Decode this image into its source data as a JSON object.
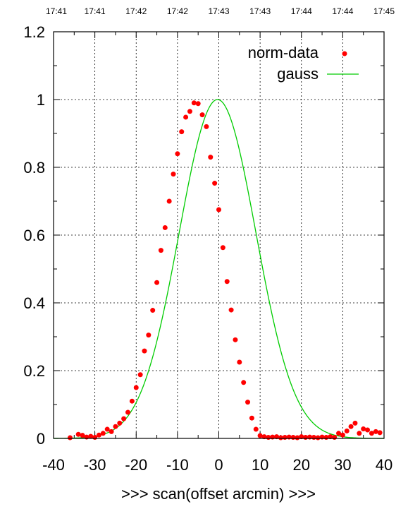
{
  "chart_data": {
    "type": "scatter",
    "title": "",
    "xlabel": ">>> scan(offset arcmin) >>>",
    "ylabel": "",
    "xlim": [
      -40,
      40
    ],
    "ylim": [
      0,
      1.2
    ],
    "x_ticks": [
      "-40",
      "-30",
      "-20",
      "-10",
      "0",
      "10",
      "20",
      "30",
      "40"
    ],
    "y_ticks": [
      "0",
      "0.2",
      "0.4",
      "0.6",
      "0.8",
      "1",
      "1.2"
    ],
    "x_tick_values": [
      -40,
      -30,
      -20,
      -10,
      0,
      10,
      20,
      30,
      40
    ],
    "y_tick_values": [
      0,
      0.2,
      0.4,
      0.6,
      0.8,
      1.0,
      1.2
    ],
    "top_time_labels": [
      "17:41",
      "17:41",
      "17:42",
      "17:42",
      "17:43",
      "17:43",
      "17:44",
      "17:44",
      "17:45"
    ],
    "grid": true,
    "legend_position": "top-right",
    "series": [
      {
        "name": "norm-data",
        "kind": "points",
        "color": "#ff0000",
        "x": [
          -36,
          -34,
          -33,
          -32,
          -31,
          -30,
          -29,
          -28,
          -27,
          -26,
          -25,
          -24,
          -23,
          -22,
          -21,
          -20,
          -19,
          -18,
          -17,
          -16,
          -15,
          -14,
          -13,
          -12,
          -11,
          -10,
          -9,
          -8,
          -7,
          -6,
          -5,
          -4,
          -3,
          -2,
          -1,
          0,
          1,
          2,
          3,
          4,
          5,
          6,
          7,
          8,
          9,
          10,
          11,
          12,
          13,
          14,
          15,
          16,
          17,
          18,
          19,
          20,
          21,
          22,
          23,
          24,
          25,
          26,
          27,
          28,
          29,
          30,
          31,
          32,
          33,
          34,
          35,
          36,
          37,
          38,
          39
        ],
        "y": [
          0.002,
          0.012,
          0.009,
          0.004,
          0.006,
          0.003,
          0.01,
          0.015,
          0.027,
          0.02,
          0.035,
          0.045,
          0.058,
          0.077,
          0.11,
          0.15,
          0.188,
          0.258,
          0.305,
          0.378,
          0.46,
          0.555,
          0.622,
          0.7,
          0.78,
          0.84,
          0.905,
          0.948,
          0.965,
          0.99,
          0.988,
          0.955,
          0.92,
          0.83,
          0.753,
          0.675,
          0.563,
          0.463,
          0.379,
          0.291,
          0.225,
          0.165,
          0.107,
          0.06,
          0.027,
          0.008,
          0.005,
          0.003,
          0.004,
          0.005,
          0.002,
          0.003,
          0.004,
          0.003,
          0.002,
          0.005,
          0.003,
          0.004,
          0.003,
          0.002,
          0.004,
          0.003,
          0.005,
          0.003,
          0.015,
          0.01,
          0.022,
          0.035,
          0.045,
          0.015,
          0.028,
          0.025,
          0.015,
          0.02,
          0.017
        ]
      },
      {
        "name": "gauss",
        "kind": "line",
        "color": "#00cc00",
        "amplitude": 1.0,
        "center": -0.3,
        "sigma": 9.3
      }
    ]
  }
}
